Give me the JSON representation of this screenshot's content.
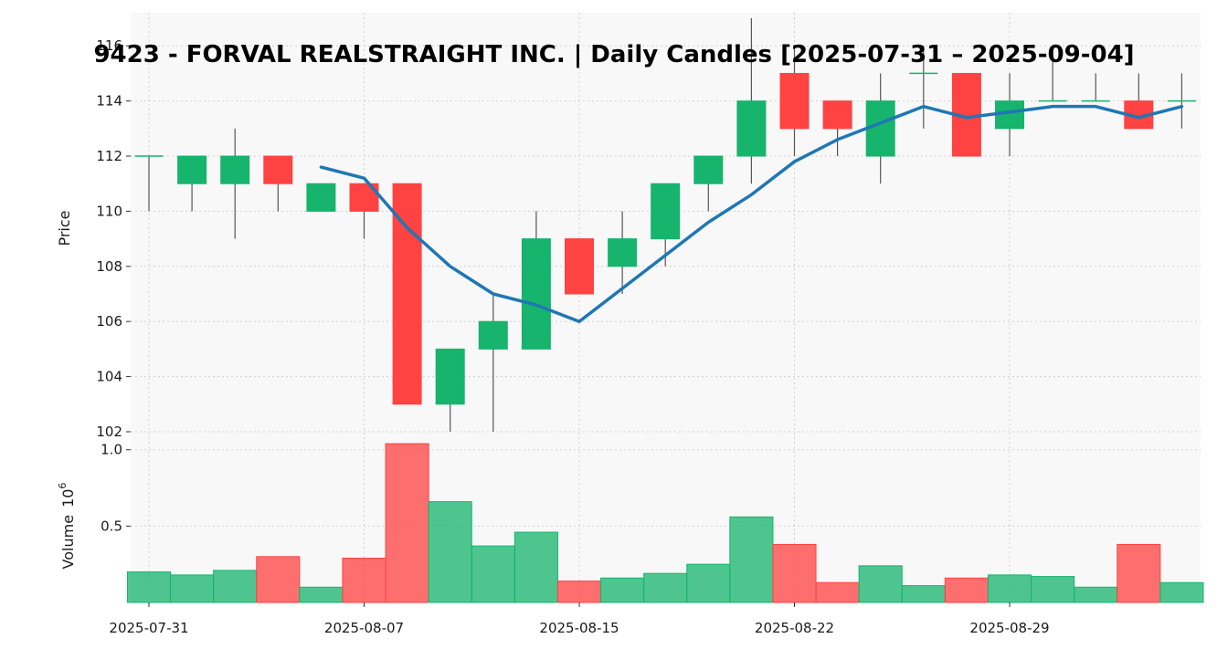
{
  "chart_data": {
    "type": "candlestick",
    "title": "9423 - FORVAL REALSTRAIGHT INC. | Daily Candles [2025-07-31 – 2025-09-04]",
    "price_panel": {
      "ylabel": "Price",
      "ylim": [
        101.9,
        117.2
      ],
      "yticks": [
        "102",
        "104",
        "106",
        "108",
        "110",
        "112",
        "114",
        "116"
      ]
    },
    "volume_panel": {
      "ylabel": "Volume",
      "scale_label": "10",
      "scale_exponent": "6",
      "ylim": [
        0,
        1.1
      ],
      "yticks": [
        "0.5",
        "1.0"
      ]
    },
    "x_ticks": [
      "2025-07-31",
      "2025-08-07",
      "2025-08-15",
      "2025-08-22",
      "2025-08-29"
    ],
    "x_tick_index": [
      0,
      5,
      10,
      15,
      20
    ],
    "colors": {
      "up": "#16b46c",
      "down": "#ff4242",
      "ma": "#1f77b4"
    },
    "candles": [
      {
        "date": "2025-07-31",
        "open": 112,
        "high": 112,
        "low": 110,
        "close": 112,
        "volume": 0.2
      },
      {
        "date": "2025-08-01",
        "open": 111,
        "high": 112,
        "low": 110,
        "close": 112,
        "volume": 0.18
      },
      {
        "date": "2025-08-04",
        "open": 111,
        "high": 113,
        "low": 109,
        "close": 112,
        "volume": 0.21
      },
      {
        "date": "2025-08-05",
        "open": 112,
        "high": 112,
        "low": 110,
        "close": 111,
        "volume": 0.3
      },
      {
        "date": "2025-08-06",
        "open": 110,
        "high": 111,
        "low": 110,
        "close": 111,
        "volume": 0.1
      },
      {
        "date": "2025-08-07",
        "open": 111,
        "high": 111,
        "low": 109,
        "close": 110,
        "volume": 0.29
      },
      {
        "date": "2025-08-08",
        "open": 111,
        "high": 111,
        "low": 103,
        "close": 103,
        "volume": 1.04
      },
      {
        "date": "2025-08-12",
        "open": 103,
        "high": 105,
        "low": 102,
        "close": 105,
        "volume": 0.66
      },
      {
        "date": "2025-08-13",
        "open": 105,
        "high": 107,
        "low": 102,
        "close": 106,
        "volume": 0.37
      },
      {
        "date": "2025-08-14",
        "open": 105,
        "high": 110,
        "low": 105,
        "close": 109,
        "volume": 0.46
      },
      {
        "date": "2025-08-15",
        "open": 109,
        "high": 109,
        "low": 107,
        "close": 107,
        "volume": 0.14
      },
      {
        "date": "2025-08-18",
        "open": 108,
        "high": 110,
        "low": 107,
        "close": 109,
        "volume": 0.16
      },
      {
        "date": "2025-08-19",
        "open": 109,
        "high": 111,
        "low": 108,
        "close": 111,
        "volume": 0.19
      },
      {
        "date": "2025-08-20",
        "open": 111,
        "high": 112,
        "low": 110,
        "close": 112,
        "volume": 0.25
      },
      {
        "date": "2025-08-21",
        "open": 112,
        "high": 117,
        "low": 111,
        "close": 114,
        "volume": 0.56
      },
      {
        "date": "2025-08-22",
        "open": 115,
        "high": 116,
        "low": 112,
        "close": 113,
        "volume": 0.38
      },
      {
        "date": "2025-08-25",
        "open": 114,
        "high": 114,
        "low": 112,
        "close": 113,
        "volume": 0.13
      },
      {
        "date": "2025-08-26",
        "open": 112,
        "high": 115,
        "low": 111,
        "close": 114,
        "volume": 0.24
      },
      {
        "date": "2025-08-27",
        "open": 115,
        "high": 116,
        "low": 113,
        "close": 115,
        "volume": 0.11
      },
      {
        "date": "2025-08-28",
        "open": 115,
        "high": 115,
        "low": 112,
        "close": 112,
        "volume": 0.16
      },
      {
        "date": "2025-08-29",
        "open": 113,
        "high": 115,
        "low": 112,
        "close": 114,
        "volume": 0.18
      },
      {
        "date": "2025-09-01",
        "open": 114,
        "high": 116,
        "low": 114,
        "close": 114,
        "volume": 0.17
      },
      {
        "date": "2025-09-02",
        "open": 114,
        "high": 115,
        "low": 114,
        "close": 114,
        "volume": 0.1
      },
      {
        "date": "2025-09-03",
        "open": 114,
        "high": 115,
        "low": 113,
        "close": 113,
        "volume": 0.38
      },
      {
        "date": "2025-09-04",
        "open": 114,
        "high": 115,
        "low": 113,
        "close": 114,
        "volume": 0.13
      }
    ],
    "ma_line": [
      {
        "i": 4,
        "value": 111.6
      },
      {
        "i": 5,
        "value": 111.2
      },
      {
        "i": 6,
        "value": 109.4
      },
      {
        "i": 7,
        "value": 108.0
      },
      {
        "i": 8,
        "value": 107.0
      },
      {
        "i": 9,
        "value": 106.6
      },
      {
        "i": 10,
        "value": 106.0
      },
      {
        "i": 11,
        "value": 107.2
      },
      {
        "i": 12,
        "value": 108.4
      },
      {
        "i": 13,
        "value": 109.6
      },
      {
        "i": 14,
        "value": 110.6
      },
      {
        "i": 15,
        "value": 111.8
      },
      {
        "i": 16,
        "value": 112.6
      },
      {
        "i": 17,
        "value": 113.2
      },
      {
        "i": 18,
        "value": 113.8
      },
      {
        "i": 19,
        "value": 113.4
      },
      {
        "i": 20,
        "value": 113.6
      },
      {
        "i": 21,
        "value": 113.8
      },
      {
        "i": 22,
        "value": 113.8
      },
      {
        "i": 23,
        "value": 113.4
      },
      {
        "i": 24,
        "value": 113.8
      }
    ]
  }
}
